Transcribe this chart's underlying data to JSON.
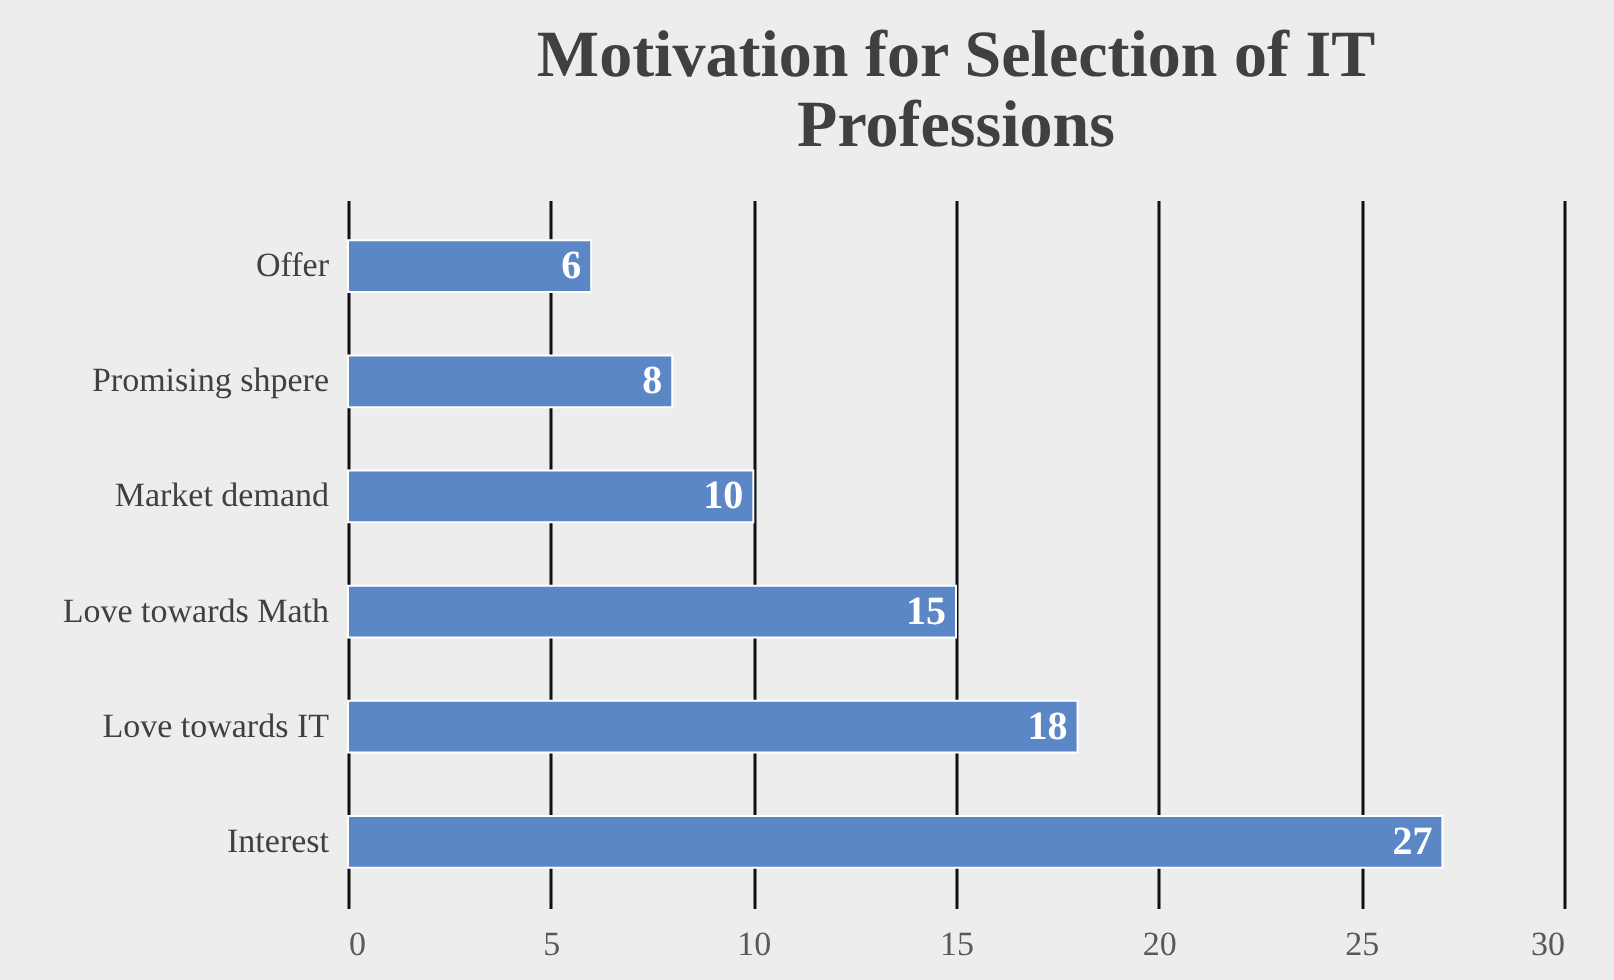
{
  "chart_data": {
    "type": "bar",
    "orientation": "horizontal",
    "title": "Motivation for Selection of IT Professions",
    "categories": [
      "Offer",
      "Promising shpere",
      "Market demand",
      "Love towards Math",
      "Love towards IT",
      "Interest"
    ],
    "values": [
      6,
      8,
      10,
      15,
      18,
      27
    ],
    "color": "#5b87c6",
    "xlim": [
      0,
      30
    ],
    "xticks": [
      0,
      5,
      10,
      15,
      20,
      25,
      30
    ],
    "grid": "x",
    "data_labels": true
  }
}
